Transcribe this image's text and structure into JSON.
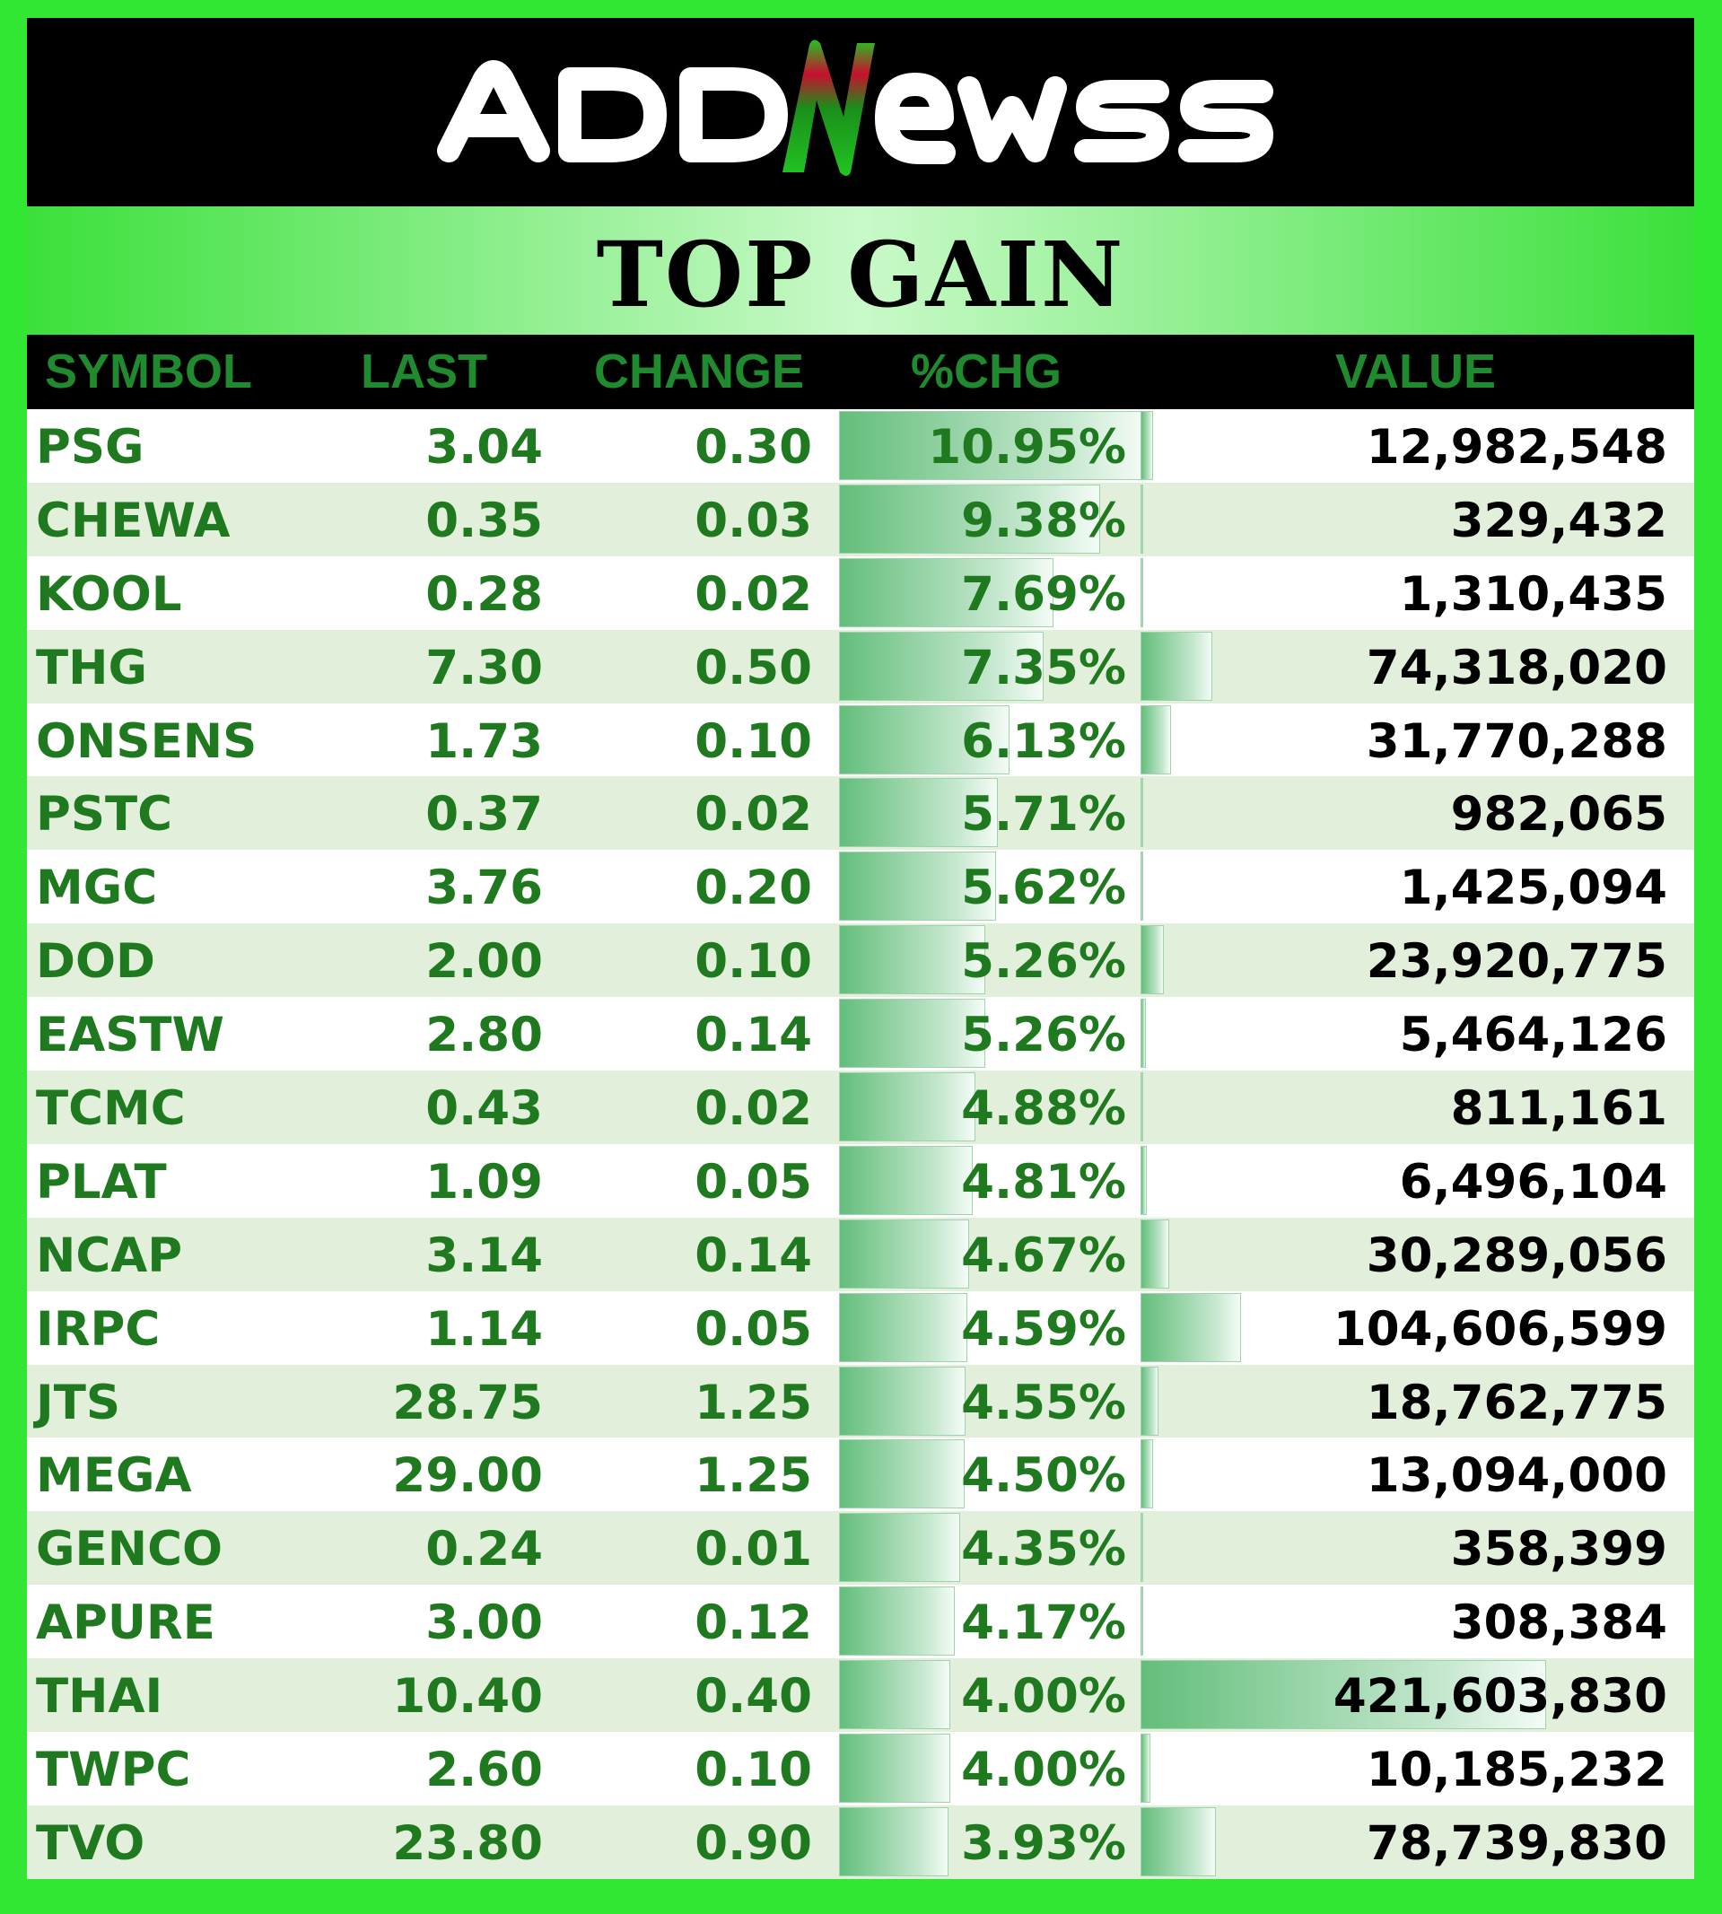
{
  "brand": {
    "logo_text": "ADDNEWSS",
    "colors": {
      "background": "#33e633",
      "logo_bar": "#000000",
      "accent_green": "#1f7a1f",
      "logo_n_red": "#c8102e",
      "logo_n_green": "#22c422"
    }
  },
  "title": "TOP GAIN",
  "headers": {
    "symbol": "SYMBOL",
    "last": "LAST",
    "change": "CHANGE",
    "pct_chg": "%CHG",
    "value": "VALUE"
  },
  "rows": [
    {
      "symbol": "PSG",
      "last": "3.04",
      "change": "0.30",
      "pct_chg": "10.95%",
      "value": "12,982,548"
    },
    {
      "symbol": "CHEWA",
      "last": "0.35",
      "change": "0.03",
      "pct_chg": "9.38%",
      "value": "329,432"
    },
    {
      "symbol": "KOOL",
      "last": "0.28",
      "change": "0.02",
      "pct_chg": "7.69%",
      "value": "1,310,435"
    },
    {
      "symbol": "THG",
      "last": "7.30",
      "change": "0.50",
      "pct_chg": "7.35%",
      "value": "74,318,020"
    },
    {
      "symbol": "ONSENS",
      "last": "1.73",
      "change": "0.10",
      "pct_chg": "6.13%",
      "value": "31,770,288"
    },
    {
      "symbol": "PSTC",
      "last": "0.37",
      "change": "0.02",
      "pct_chg": "5.71%",
      "value": "982,065"
    },
    {
      "symbol": "MGC",
      "last": "3.76",
      "change": "0.20",
      "pct_chg": "5.62%",
      "value": "1,425,094"
    },
    {
      "symbol": "DOD",
      "last": "2.00",
      "change": "0.10",
      "pct_chg": "5.26%",
      "value": "23,920,775"
    },
    {
      "symbol": "EASTW",
      "last": "2.80",
      "change": "0.14",
      "pct_chg": "5.26%",
      "value": "5,464,126"
    },
    {
      "symbol": "TCMC",
      "last": "0.43",
      "change": "0.02",
      "pct_chg": "4.88%",
      "value": "811,161"
    },
    {
      "symbol": "PLAT",
      "last": "1.09",
      "change": "0.05",
      "pct_chg": "4.81%",
      "value": "6,496,104"
    },
    {
      "symbol": "NCAP",
      "last": "3.14",
      "change": "0.14",
      "pct_chg": "4.67%",
      "value": "30,289,056"
    },
    {
      "symbol": "IRPC",
      "last": "1.14",
      "change": "0.05",
      "pct_chg": "4.59%",
      "value": "104,606,599"
    },
    {
      "symbol": "JTS",
      "last": "28.75",
      "change": "1.25",
      "pct_chg": "4.55%",
      "value": "18,762,775"
    },
    {
      "symbol": "MEGA",
      "last": "29.00",
      "change": "1.25",
      "pct_chg": "4.50%",
      "value": "13,094,000"
    },
    {
      "symbol": "GENCO",
      "last": "0.24",
      "change": "0.01",
      "pct_chg": "4.35%",
      "value": "358,399"
    },
    {
      "symbol": "APURE",
      "last": "3.00",
      "change": "0.12",
      "pct_chg": "4.17%",
      "value": "308,384"
    },
    {
      "symbol": "THAI",
      "last": "10.40",
      "change": "0.40",
      "pct_chg": "4.00%",
      "value": "421,603,830"
    },
    {
      "symbol": "TWPC",
      "last": "2.60",
      "change": "0.10",
      "pct_chg": "4.00%",
      "value": "10,185,232"
    },
    {
      "symbol": "TVO",
      "last": "23.80",
      "change": "0.90",
      "pct_chg": "3.93%",
      "value": "78,739,830"
    }
  ]
}
